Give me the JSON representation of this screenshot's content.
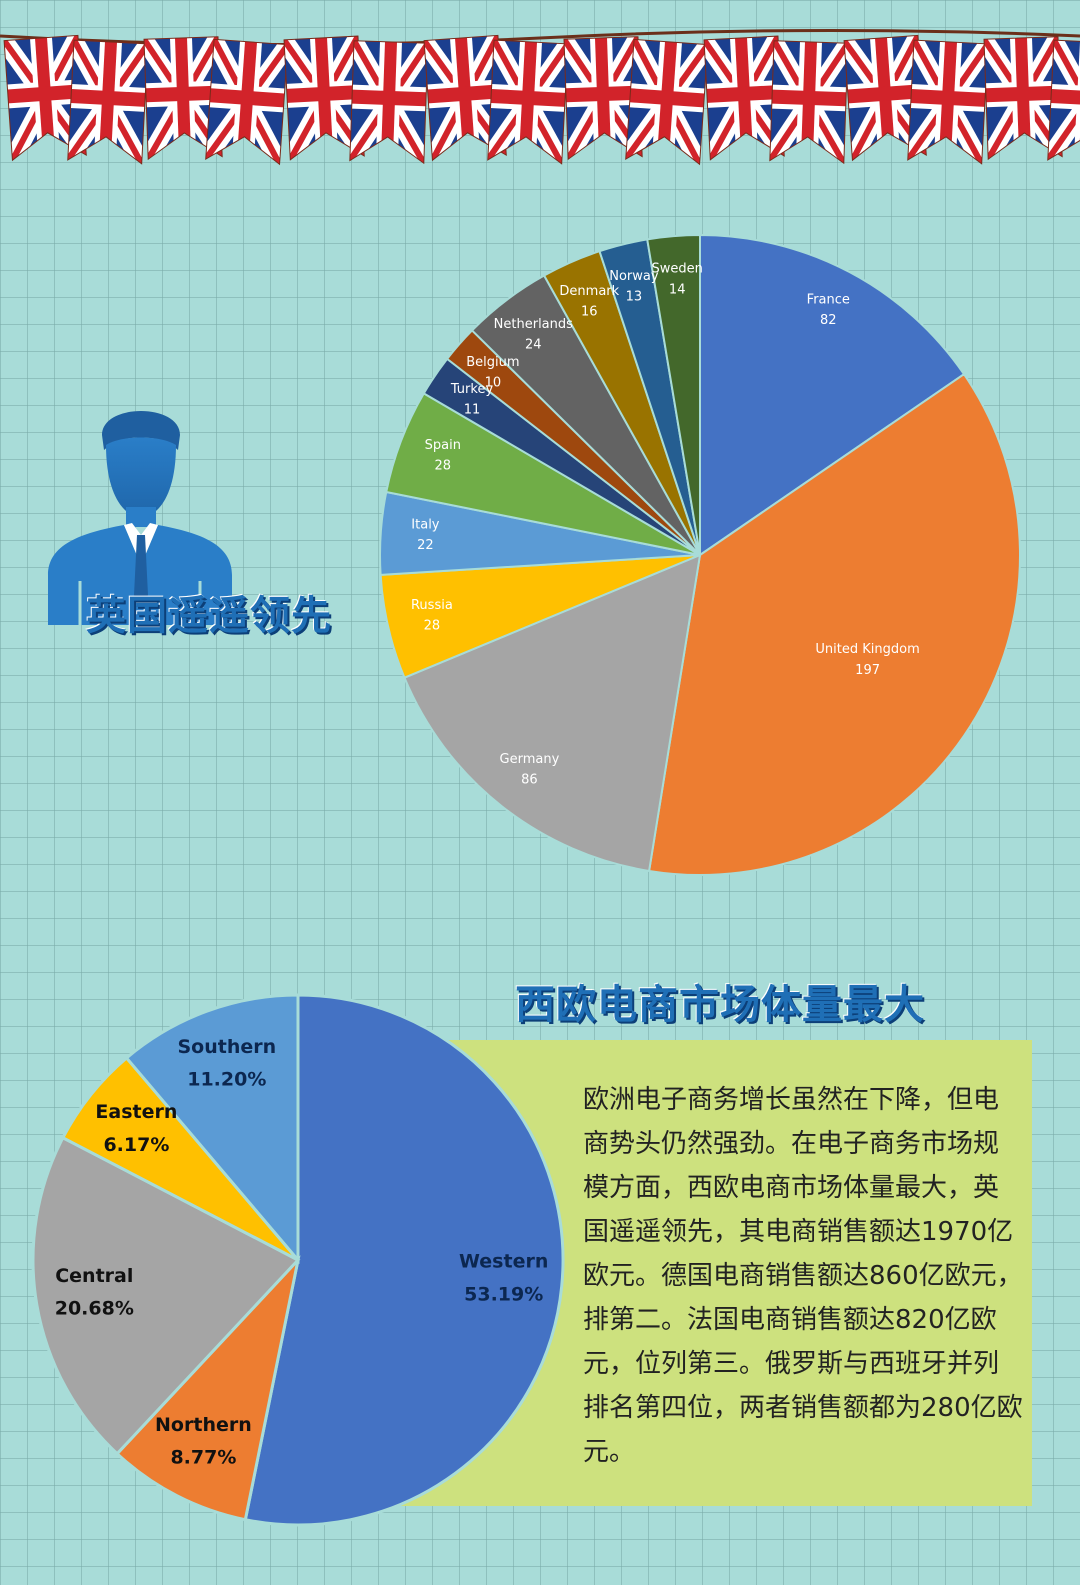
{
  "headings": {
    "uk_leads": "英国遥遥领先",
    "western_largest": "西欧电商市场体量最大"
  },
  "paragraph": "欧洲电子商务增长虽然在下降，但电商势头仍然强劲。在电子商务市场规模方面，西欧电商市场体量最大，英国遥遥领先，其电商销售额达1970亿欧元。德国电商销售额达860亿欧元，排第二。法国电商销售额达820亿欧元，位列第三。俄罗斯与西班牙并列排名第四位，两者销售额都为280亿欧元。",
  "decor": {
    "banner": "union-jack-flag-bunting",
    "person_icon": "businessman-silhouette-icon",
    "background_color": "#a8dcd8",
    "textbox_color": "#cde17e"
  },
  "chart_data": [
    {
      "type": "pie",
      "start": "12 o'clock, clockwise",
      "data_labels": "category name and value",
      "slices": [
        {
          "label": "France",
          "value": 82,
          "color": "#4472c4"
        },
        {
          "label": "United Kingdom",
          "value": 197,
          "color": "#ed7d31"
        },
        {
          "label": "Germany",
          "value": 86,
          "color": "#a5a5a5"
        },
        {
          "label": "Russia",
          "value": 28,
          "color": "#ffc000"
        },
        {
          "label": "Italy",
          "value": 22,
          "color": "#5b9bd5"
        },
        {
          "label": "Spain",
          "value": 28,
          "color": "#70ad47"
        },
        {
          "label": "Turkey",
          "value": 11,
          "color": "#264478"
        },
        {
          "label": "Belgium",
          "value": 10,
          "color": "#9e480e"
        },
        {
          "label": "Netherlands",
          "value": 24,
          "color": "#636363"
        },
        {
          "label": "Denmark",
          "value": 16,
          "color": "#997300"
        },
        {
          "label": "Norway",
          "value": 13,
          "color": "#255e91"
        },
        {
          "label": "Sweden",
          "value": 14,
          "color": "#43682b"
        }
      ]
    },
    {
      "type": "pie",
      "start": "12 o'clock, clockwise",
      "data_labels": "category name and percentage",
      "slices": [
        {
          "label": "Western",
          "value": 53.19,
          "display": "53.19%",
          "color": "#4472c4"
        },
        {
          "label": "Northern",
          "value": 8.77,
          "display": "8.77%",
          "color": "#ed7d31"
        },
        {
          "label": "Central",
          "value": 20.68,
          "display": "20.68%",
          "color": "#a5a5a5"
        },
        {
          "label": "Eastern",
          "value": 6.17,
          "display": "6.17%",
          "color": "#ffc000"
        },
        {
          "label": "Southern",
          "value": 11.2,
          "display": "11.20%",
          "color": "#5b9bd5"
        }
      ]
    }
  ]
}
